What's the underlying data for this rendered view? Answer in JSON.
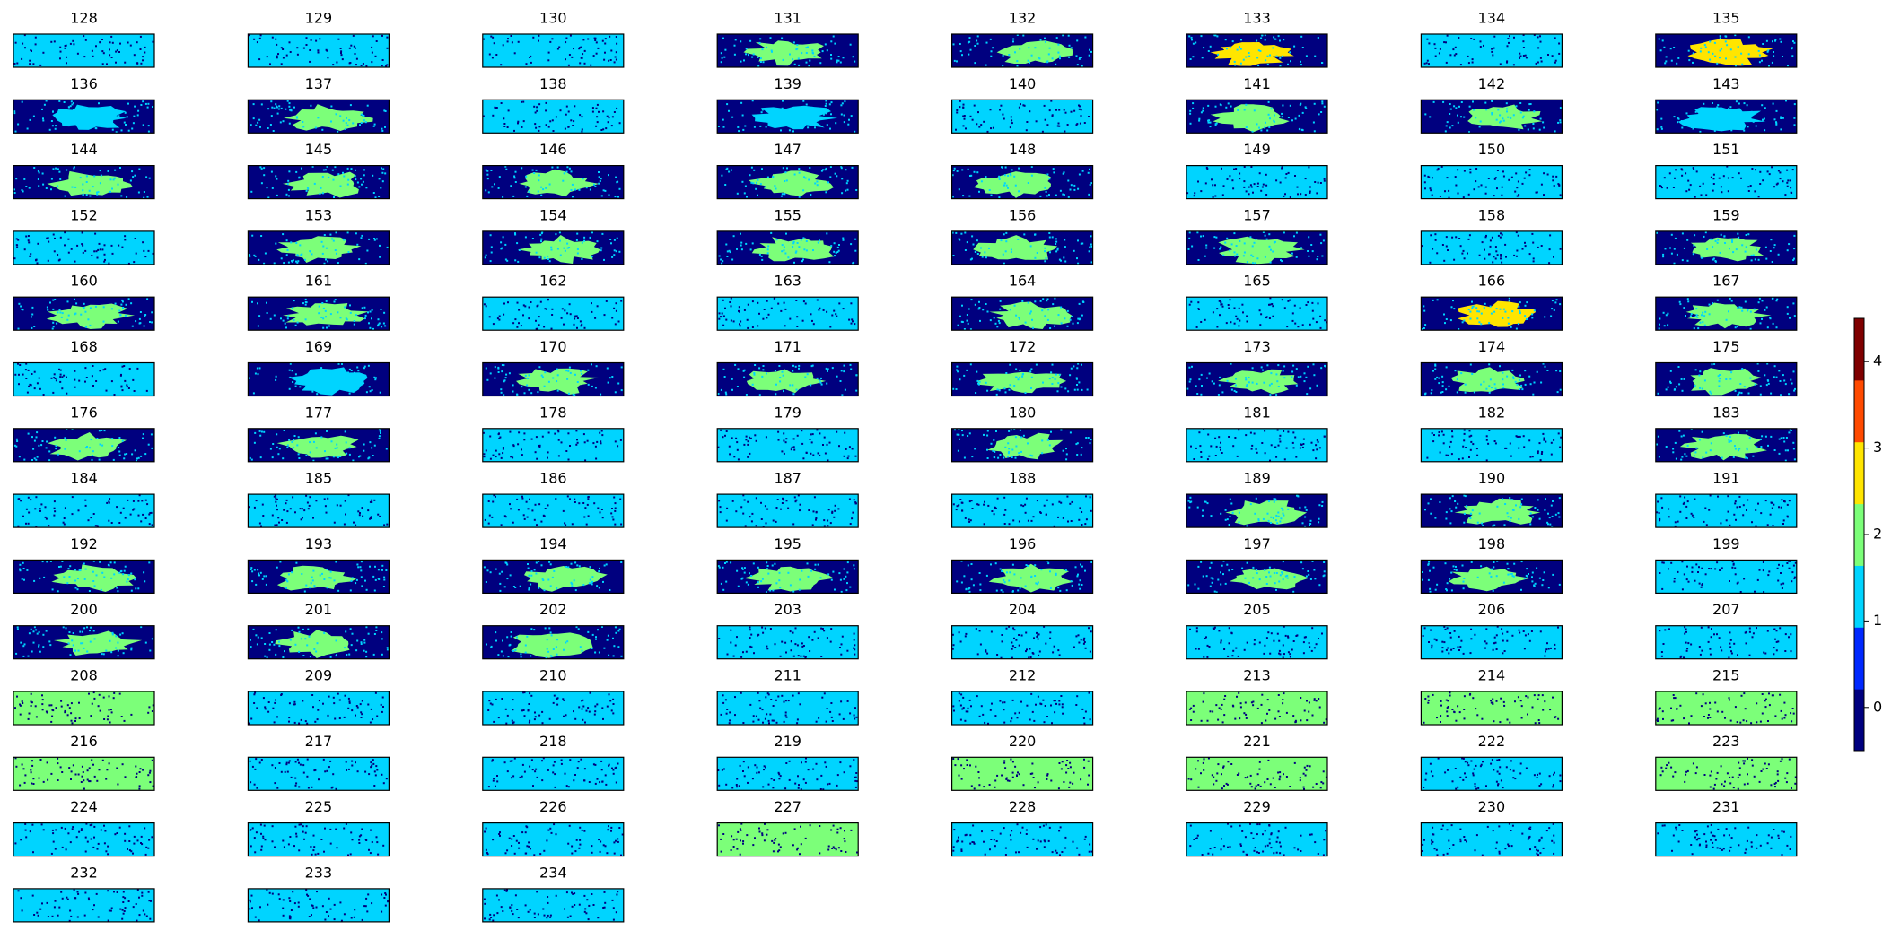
{
  "chart_data": {
    "type": "image-grid",
    "colorbar": {
      "clim": [
        -0.5,
        4.5
      ],
      "ticks": [
        0,
        1,
        2,
        3,
        4
      ],
      "colors": [
        "#00007f",
        "#0028ff",
        "#00d4ff",
        "#7cff79",
        "#ffe500",
        "#ff4a00",
        "#7f0000"
      ]
    },
    "panels": [
      {
        "title": "128",
        "background": "#00d4ff"
      },
      {
        "title": "129",
        "background": "#00d4ff"
      },
      {
        "title": "130",
        "background": "#00d4ff"
      },
      {
        "title": "131",
        "background": "#00007f",
        "blob": "#7cff79"
      },
      {
        "title": "132",
        "background": "#00007f",
        "blob": "#7cff79"
      },
      {
        "title": "133",
        "background": "#00007f",
        "blob": "#ffe500"
      },
      {
        "title": "134",
        "background": "#00d4ff"
      },
      {
        "title": "135",
        "background": "#00007f",
        "blob": "#ffe500"
      },
      {
        "title": "136",
        "background": "#00007f",
        "blob": "#00d4ff"
      },
      {
        "title": "137",
        "background": "#00007f",
        "blob": "#7cff79"
      },
      {
        "title": "138",
        "background": "#00d4ff"
      },
      {
        "title": "139",
        "background": "#00007f",
        "blob": "#00d4ff"
      },
      {
        "title": "140",
        "background": "#00d4ff"
      },
      {
        "title": "141",
        "background": "#00007f",
        "blob": "#7cff79"
      },
      {
        "title": "142",
        "background": "#00007f",
        "blob": "#7cff79"
      },
      {
        "title": "143",
        "background": "#00007f",
        "blob": "#00d4ff"
      },
      {
        "title": "144",
        "background": "#00007f",
        "blob": "#7cff79"
      },
      {
        "title": "145",
        "background": "#00007f",
        "blob": "#7cff79"
      },
      {
        "title": "146",
        "background": "#00007f",
        "blob": "#7cff79"
      },
      {
        "title": "147",
        "background": "#00007f",
        "blob": "#7cff79"
      },
      {
        "title": "148",
        "background": "#00007f",
        "blob": "#7cff79"
      },
      {
        "title": "149",
        "background": "#00d4ff"
      },
      {
        "title": "150",
        "background": "#00d4ff"
      },
      {
        "title": "151",
        "background": "#00d4ff"
      },
      {
        "title": "152",
        "background": "#00d4ff"
      },
      {
        "title": "153",
        "background": "#00007f",
        "blob": "#7cff79"
      },
      {
        "title": "154",
        "background": "#00007f",
        "blob": "#7cff79"
      },
      {
        "title": "155",
        "background": "#00007f",
        "blob": "#7cff79"
      },
      {
        "title": "156",
        "background": "#00007f",
        "blob": "#7cff79"
      },
      {
        "title": "157",
        "background": "#00007f",
        "blob": "#7cff79"
      },
      {
        "title": "158",
        "background": "#00d4ff"
      },
      {
        "title": "159",
        "background": "#00007f",
        "blob": "#7cff79"
      },
      {
        "title": "160",
        "background": "#00007f",
        "blob": "#7cff79"
      },
      {
        "title": "161",
        "background": "#00007f",
        "blob": "#7cff79"
      },
      {
        "title": "162",
        "background": "#00d4ff"
      },
      {
        "title": "163",
        "background": "#00d4ff"
      },
      {
        "title": "164",
        "background": "#00007f",
        "blob": "#7cff79"
      },
      {
        "title": "165",
        "background": "#00d4ff"
      },
      {
        "title": "166",
        "background": "#00007f",
        "blob": "#ffe500"
      },
      {
        "title": "167",
        "background": "#00007f",
        "blob": "#7cff79"
      },
      {
        "title": "168",
        "background": "#00d4ff"
      },
      {
        "title": "169",
        "background": "#00007f",
        "blob": "#00d4ff"
      },
      {
        "title": "170",
        "background": "#00007f",
        "blob": "#7cff79"
      },
      {
        "title": "171",
        "background": "#00007f",
        "blob": "#7cff79"
      },
      {
        "title": "172",
        "background": "#00007f",
        "blob": "#7cff79"
      },
      {
        "title": "173",
        "background": "#00007f",
        "blob": "#7cff79"
      },
      {
        "title": "174",
        "background": "#00007f",
        "blob": "#7cff79"
      },
      {
        "title": "175",
        "background": "#00007f",
        "blob": "#7cff79"
      },
      {
        "title": "176",
        "background": "#00007f",
        "blob": "#7cff79"
      },
      {
        "title": "177",
        "background": "#00007f",
        "blob": "#7cff79"
      },
      {
        "title": "178",
        "background": "#00d4ff"
      },
      {
        "title": "179",
        "background": "#00d4ff"
      },
      {
        "title": "180",
        "background": "#00007f",
        "blob": "#7cff79"
      },
      {
        "title": "181",
        "background": "#00d4ff"
      },
      {
        "title": "182",
        "background": "#00d4ff"
      },
      {
        "title": "183",
        "background": "#00007f",
        "blob": "#7cff79"
      },
      {
        "title": "184",
        "background": "#00d4ff"
      },
      {
        "title": "185",
        "background": "#00d4ff"
      },
      {
        "title": "186",
        "background": "#00d4ff"
      },
      {
        "title": "187",
        "background": "#00d4ff"
      },
      {
        "title": "188",
        "background": "#00d4ff"
      },
      {
        "title": "189",
        "background": "#00007f",
        "blob": "#7cff79"
      },
      {
        "title": "190",
        "background": "#00007f",
        "blob": "#7cff79"
      },
      {
        "title": "191",
        "background": "#00d4ff"
      },
      {
        "title": "192",
        "background": "#00007f",
        "blob": "#7cff79"
      },
      {
        "title": "193",
        "background": "#00007f",
        "blob": "#7cff79"
      },
      {
        "title": "194",
        "background": "#00007f",
        "blob": "#7cff79"
      },
      {
        "title": "195",
        "background": "#00007f",
        "blob": "#7cff79"
      },
      {
        "title": "196",
        "background": "#00007f",
        "blob": "#7cff79"
      },
      {
        "title": "197",
        "background": "#00007f",
        "blob": "#7cff79"
      },
      {
        "title": "198",
        "background": "#00007f",
        "blob": "#7cff79"
      },
      {
        "title": "199",
        "background": "#00d4ff"
      },
      {
        "title": "200",
        "background": "#00007f",
        "blob": "#7cff79"
      },
      {
        "title": "201",
        "background": "#00007f",
        "blob": "#7cff79"
      },
      {
        "title": "202",
        "background": "#00007f",
        "blob": "#7cff79"
      },
      {
        "title": "203",
        "background": "#00d4ff"
      },
      {
        "title": "204",
        "background": "#00d4ff"
      },
      {
        "title": "205",
        "background": "#00d4ff"
      },
      {
        "title": "206",
        "background": "#00d4ff"
      },
      {
        "title": "207",
        "background": "#00d4ff"
      },
      {
        "title": "208",
        "background": "#7cff79"
      },
      {
        "title": "209",
        "background": "#00d4ff"
      },
      {
        "title": "210",
        "background": "#00d4ff"
      },
      {
        "title": "211",
        "background": "#00d4ff"
      },
      {
        "title": "212",
        "background": "#00d4ff"
      },
      {
        "title": "213",
        "background": "#7cff79"
      },
      {
        "title": "214",
        "background": "#7cff79"
      },
      {
        "title": "215",
        "background": "#7cff79"
      },
      {
        "title": "216",
        "background": "#7cff79"
      },
      {
        "title": "217",
        "background": "#00d4ff"
      },
      {
        "title": "218",
        "background": "#00d4ff"
      },
      {
        "title": "219",
        "background": "#00d4ff"
      },
      {
        "title": "220",
        "background": "#7cff79"
      },
      {
        "title": "221",
        "background": "#7cff79"
      },
      {
        "title": "222",
        "background": "#00d4ff"
      },
      {
        "title": "223",
        "background": "#7cff79"
      },
      {
        "title": "224",
        "background": "#00d4ff"
      },
      {
        "title": "225",
        "background": "#00d4ff"
      },
      {
        "title": "226",
        "background": "#00d4ff"
      },
      {
        "title": "227",
        "background": "#7cff79"
      },
      {
        "title": "228",
        "background": "#00d4ff"
      },
      {
        "title": "229",
        "background": "#00d4ff"
      },
      {
        "title": "230",
        "background": "#00d4ff"
      },
      {
        "title": "231",
        "background": "#00d4ff"
      },
      {
        "title": "232",
        "background": "#00d4ff"
      },
      {
        "title": "233",
        "background": "#00d4ff"
      },
      {
        "title": "234",
        "background": "#00d4ff"
      }
    ]
  }
}
